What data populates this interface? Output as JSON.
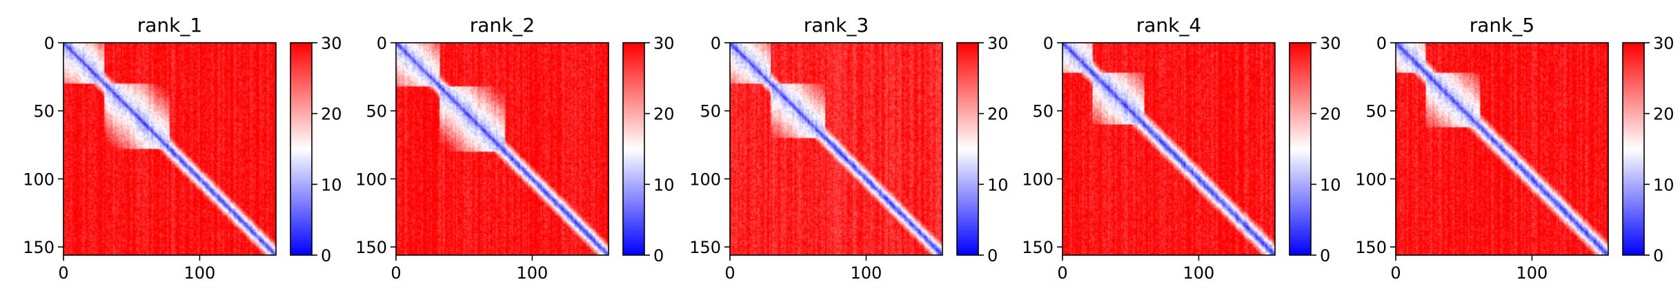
{
  "chart_data": [
    {
      "type": "heatmap",
      "title": "rank_1",
      "matrix_size": 156,
      "xlim": [
        0,
        156
      ],
      "ylim": [
        156,
        0
      ],
      "xticks": [
        0,
        100
      ],
      "yticks": [
        0,
        50,
        100,
        150
      ],
      "colorbar": {
        "min": 0,
        "max": 30,
        "ticks": [
          0,
          10,
          20,
          30
        ]
      },
      "diagonal_band": 2.6,
      "domains": [
        [
          0,
          30
        ],
        [
          30,
          78
        ]
      ],
      "background_level": 29
    },
    {
      "type": "heatmap",
      "title": "rank_2",
      "matrix_size": 156,
      "xlim": [
        0,
        156
      ],
      "ylim": [
        156,
        0
      ],
      "xticks": [
        0,
        100
      ],
      "yticks": [
        0,
        50,
        100,
        150
      ],
      "colorbar": {
        "min": 0,
        "max": 30,
        "ticks": [
          0,
          10,
          20,
          30
        ]
      },
      "diagonal_band": 2.6,
      "domains": [
        [
          0,
          32
        ],
        [
          32,
          80
        ]
      ],
      "background_level": 29
    },
    {
      "type": "heatmap",
      "title": "rank_3",
      "matrix_size": 156,
      "xlim": [
        0,
        156
      ],
      "ylim": [
        156,
        0
      ],
      "xticks": [
        0,
        100
      ],
      "yticks": [
        0,
        50,
        100,
        150
      ],
      "colorbar": {
        "min": 0,
        "max": 30,
        "ticks": [
          0,
          10,
          20,
          30
        ]
      },
      "diagonal_band": 2.6,
      "domains": [
        [
          0,
          30
        ],
        [
          30,
          70
        ]
      ],
      "background_level": 28
    },
    {
      "type": "heatmap",
      "title": "rank_4",
      "matrix_size": 156,
      "xlim": [
        0,
        156
      ],
      "ylim": [
        156,
        0
      ],
      "xticks": [
        0,
        100
      ],
      "yticks": [
        0,
        50,
        100,
        150
      ],
      "colorbar": {
        "min": 0,
        "max": 30,
        "ticks": [
          0,
          10,
          20,
          30
        ]
      },
      "diagonal_band": 2.3,
      "domains": [
        [
          0,
          22
        ],
        [
          22,
          60
        ]
      ],
      "background_level": 29
    },
    {
      "type": "heatmap",
      "title": "rank_5",
      "matrix_size": 156,
      "xlim": [
        0,
        156
      ],
      "ylim": [
        156,
        0
      ],
      "xticks": [
        0,
        100
      ],
      "yticks": [
        0,
        50,
        100,
        150
      ],
      "colorbar": {
        "min": 0,
        "max": 30,
        "ticks": [
          0,
          10,
          20,
          30
        ]
      },
      "diagonal_band": 2.3,
      "domains": [
        [
          0,
          22
        ],
        [
          22,
          62
        ]
      ],
      "background_level": 29
    }
  ],
  "colors": {
    "low": "#0000ff",
    "mid": "#ffffff",
    "high": "#ff0000"
  }
}
